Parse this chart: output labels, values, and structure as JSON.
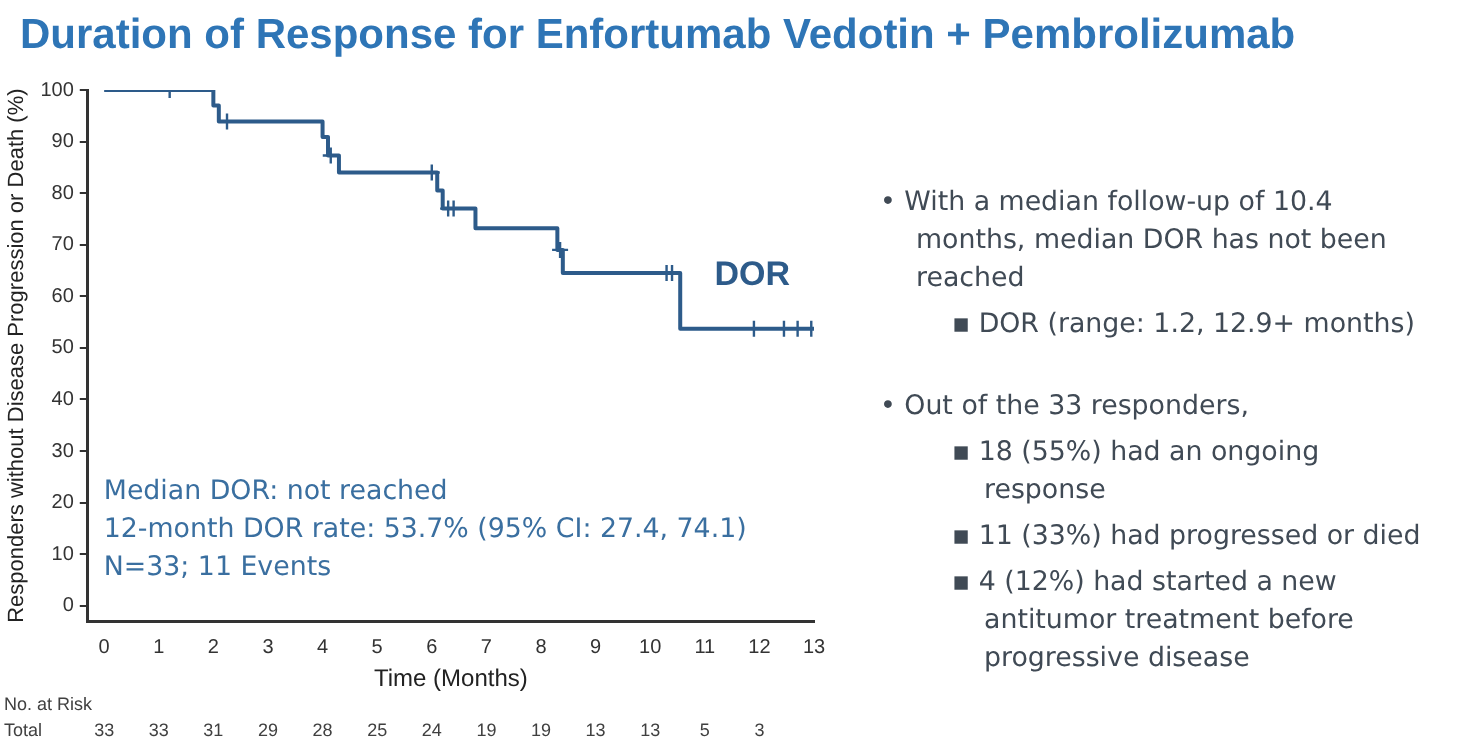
{
  "chart_data": {
    "type": "step",
    "title": "Duration of Response for Enfortumab Vedotin + Pembrolizumab",
    "xlabel": "Time (Months)",
    "ylabel": "Responders without Disease Progression or Death (%)",
    "xlim": [
      -0.3,
      13
    ],
    "xticks": [
      0,
      1,
      2,
      3,
      4,
      5,
      6,
      7,
      8,
      9,
      10,
      11,
      12,
      13
    ],
    "ylim": [
      -3,
      100
    ],
    "yticks": [
      0,
      10,
      20,
      30,
      40,
      50,
      60,
      70,
      80,
      90,
      100
    ],
    "grid": false,
    "legend": false,
    "series": [
      {
        "name": "DOR",
        "color": "#2d5b8a",
        "marker": "none",
        "x": [
          0,
          2.0,
          2.1,
          4.0,
          4.1,
          4.3,
          6.1,
          6.2,
          6.8,
          8.3,
          8.4,
          10.55,
          13
        ],
        "values": [
          100,
          97,
          93.9,
          90.9,
          87.3,
          84,
          80.5,
          77,
          73.2,
          69,
          64.5,
          53.7,
          53.7
        ]
      },
      {
        "type": "scatter",
        "color": "#2d5b8a",
        "marker": "cross",
        "x": [
          1.2,
          2.25,
          4.15,
          6.0,
          6.3,
          6.4,
          8.35,
          10.3,
          10.4,
          11.9,
          12.45,
          12.7,
          12.95
        ],
        "values": [
          100,
          93.9,
          87.3,
          84,
          77,
          77,
          69,
          64.5,
          64.5,
          53.7,
          53.7,
          53.7,
          53.7
        ]
      }
    ],
    "annotations": [
      "Median DOR: not reached",
      "12-month DOR rate: 53.7% (95% CI: 27.4, 74.1)",
      "N=33; 11 Events",
      "No. at Risk",
      "Total",
      "33",
      "33",
      "31",
      "29",
      "28",
      "25",
      "24",
      "19",
      "19",
      "13",
      "13",
      "5",
      "3",
      "• With a median follow-up of 10.4 months, median DOR has not been reached",
      "▪ DOR (range: 1.2, 12.9+ months)",
      "• Out of the 33 responders,",
      "▪ 18 (55%) had an ongoing response",
      "▪ 11 (33%) had progressed or died",
      "▪ 4 (12%) had started a new antitumor treatment before progressive disease"
    ]
  }
}
